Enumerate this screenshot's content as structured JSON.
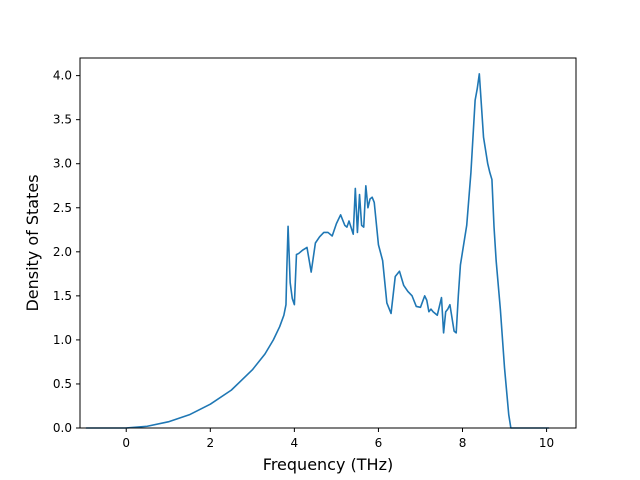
{
  "chart_data": {
    "type": "line",
    "title": "",
    "xlabel": "Frequency (THz)",
    "ylabel": "Density of States",
    "xlim": [
      -1.1,
      10.7
    ],
    "ylim": [
      0.0,
      4.2
    ],
    "grid": false,
    "legend": "none",
    "line_color": "#1f77b4",
    "xticks": [
      0,
      2,
      4,
      6,
      8,
      10
    ],
    "yticks": [
      0.0,
      0.5,
      1.0,
      1.5,
      2.0,
      2.5,
      3.0,
      3.5,
      4.0
    ],
    "xtick_labels": [
      "0",
      "2",
      "4",
      "6",
      "8",
      "10"
    ],
    "ytick_labels": [
      "0.0",
      "0.5",
      "1.0",
      "1.5",
      "2.0",
      "2.5",
      "3.0",
      "3.5",
      "4.0"
    ],
    "series": [
      {
        "x": [
          -0.95,
          -0.5,
          0.0,
          0.5,
          1.0,
          1.5,
          2.0,
          2.5,
          3.0,
          3.3,
          3.5,
          3.65,
          3.75,
          3.8,
          3.82,
          3.85,
          3.9,
          3.95,
          4.0,
          4.05,
          4.1,
          4.2,
          4.3,
          4.4,
          4.5,
          4.6,
          4.7,
          4.8,
          4.9,
          5.0,
          5.1,
          5.2,
          5.25,
          5.3,
          5.4,
          5.45,
          5.5,
          5.55,
          5.6,
          5.65,
          5.7,
          5.75,
          5.8,
          5.85,
          5.9,
          6.0,
          6.1,
          6.2,
          6.3,
          6.4,
          6.5,
          6.6,
          6.7,
          6.8,
          6.9,
          7.0,
          7.1,
          7.15,
          7.2,
          7.25,
          7.3,
          7.4,
          7.5,
          7.55,
          7.6,
          7.65,
          7.7,
          7.8,
          7.85,
          7.9,
          7.95,
          8.0,
          8.1,
          8.2,
          8.3,
          8.35,
          8.4,
          8.5,
          8.55,
          8.6,
          8.65,
          8.7,
          8.75,
          8.8,
          8.9,
          9.0,
          9.1,
          9.15,
          9.2,
          9.3,
          9.5,
          10.0,
          10.05
        ],
        "y": [
          0.0,
          0.0,
          0.0,
          0.02,
          0.07,
          0.15,
          0.27,
          0.43,
          0.66,
          0.84,
          1.0,
          1.15,
          1.28,
          1.4,
          1.8,
          2.29,
          1.65,
          1.47,
          1.4,
          1.97,
          1.98,
          2.02,
          2.05,
          1.77,
          2.1,
          2.17,
          2.22,
          2.22,
          2.18,
          2.32,
          2.42,
          2.3,
          2.28,
          2.35,
          2.2,
          2.72,
          2.22,
          2.65,
          2.3,
          2.28,
          2.75,
          2.5,
          2.6,
          2.62,
          2.56,
          2.08,
          1.9,
          1.42,
          1.3,
          1.72,
          1.78,
          1.62,
          1.55,
          1.5,
          1.38,
          1.37,
          1.5,
          1.45,
          1.32,
          1.35,
          1.32,
          1.28,
          1.48,
          1.08,
          1.32,
          1.35,
          1.4,
          1.1,
          1.08,
          1.5,
          1.85,
          2.0,
          2.3,
          2.9,
          3.72,
          3.85,
          4.02,
          3.3,
          3.15,
          3.0,
          2.9,
          2.82,
          2.28,
          1.9,
          1.35,
          0.68,
          0.15,
          0.0,
          0.0,
          0.0,
          0.0,
          0.0,
          0.0
        ]
      }
    ]
  }
}
